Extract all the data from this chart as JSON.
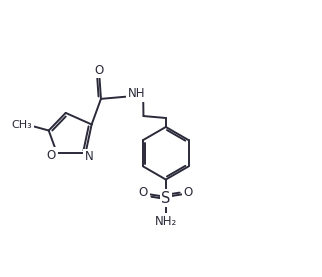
{
  "bg_color": "#ffffff",
  "line_color": "#2a2a3a",
  "text_color": "#2a2a3a",
  "line_width": 1.4,
  "font_size": 8.5,
  "fig_width": 3.22,
  "fig_height": 2.77,
  "dpi": 100,
  "xlim": [
    0,
    10
  ],
  "ylim": [
    0,
    8.6
  ]
}
